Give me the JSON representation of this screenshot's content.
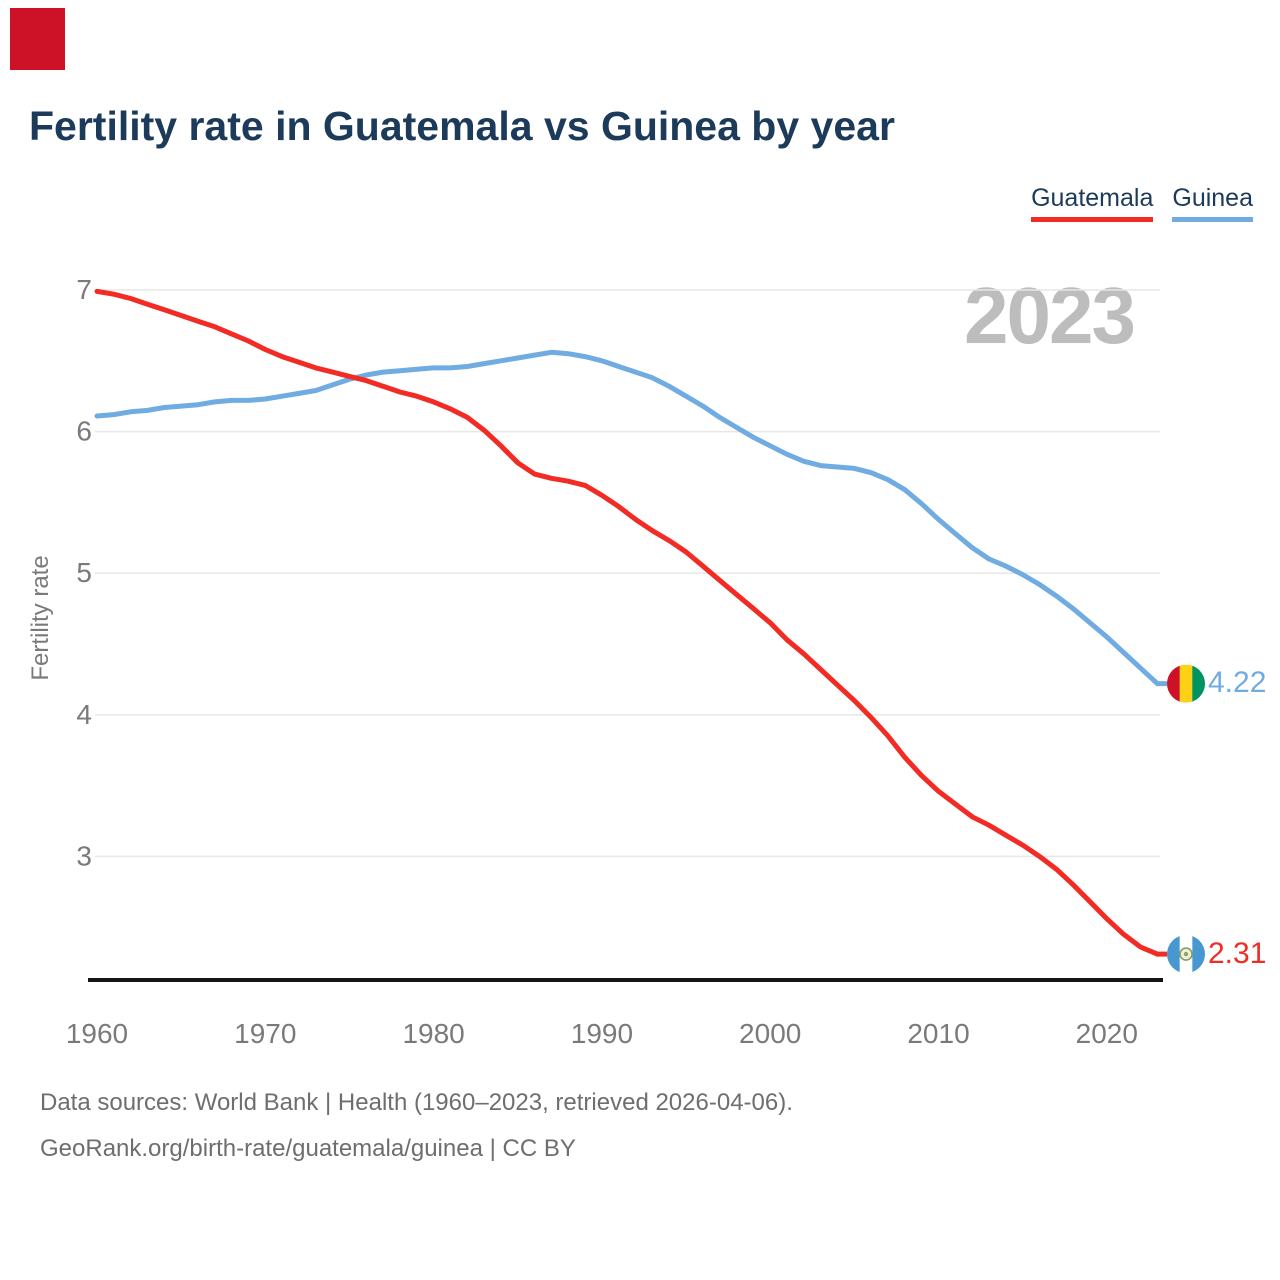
{
  "page": {
    "title": "Fertility rate in Guatemala vs Guinea by year",
    "watermark_year": "2023"
  },
  "brand": {
    "logo_color": "#cd1126"
  },
  "legend": {
    "items": [
      {
        "label": "Guatemala",
        "color": "#f22b24"
      },
      {
        "label": "Guinea",
        "color": "#70ace2"
      }
    ]
  },
  "footer": {
    "sources_line": "Data sources: World Bank | Health (1960–2023, retrieved 2026-04-06).",
    "attribution_line": "GeoRank.org/birth-rate/guatemala/guinea | CC BY"
  },
  "chart_data": {
    "type": "line",
    "title": "Fertility rate in Guatemala vs Guinea by year",
    "xlabel": "",
    "ylabel": "Fertility rate",
    "xlim": [
      1960,
      2023
    ],
    "ylim": [
      2.1,
      7.05
    ],
    "x_ticks": [
      1960,
      1970,
      1980,
      1990,
      2000,
      2010,
      2020
    ],
    "y_ticks": [
      7,
      6,
      5,
      4,
      3
    ],
    "grid": "horizontal",
    "legend_position": "top-right",
    "watermark": "2023",
    "years": [
      1960,
      1961,
      1962,
      1963,
      1964,
      1965,
      1966,
      1967,
      1968,
      1969,
      1970,
      1971,
      1972,
      1973,
      1974,
      1975,
      1976,
      1977,
      1978,
      1979,
      1980,
      1981,
      1982,
      1983,
      1984,
      1985,
      1986,
      1987,
      1988,
      1989,
      1990,
      1991,
      1992,
      1993,
      1994,
      1995,
      1996,
      1997,
      1998,
      1999,
      2000,
      2001,
      2002,
      2003,
      2004,
      2005,
      2006,
      2007,
      2008,
      2009,
      2010,
      2011,
      2012,
      2013,
      2014,
      2015,
      2016,
      2017,
      2018,
      2019,
      2020,
      2021,
      2022,
      2023
    ],
    "series": [
      {
        "name": "Guatemala",
        "color": "#f22b24",
        "end_value_label": "2.31",
        "flag": "guatemala",
        "flag_colors": [
          "#4997d0",
          "#ffffff",
          "#4997d0"
        ],
        "values": [
          6.99,
          6.97,
          6.94,
          6.9,
          6.86,
          6.82,
          6.78,
          6.74,
          6.69,
          6.64,
          6.58,
          6.53,
          6.49,
          6.45,
          6.42,
          6.39,
          6.36,
          6.32,
          6.28,
          6.25,
          6.21,
          6.16,
          6.1,
          6.01,
          5.9,
          5.78,
          5.7,
          5.67,
          5.65,
          5.62,
          5.55,
          5.47,
          5.38,
          5.3,
          5.23,
          5.15,
          5.05,
          4.95,
          4.85,
          4.75,
          4.65,
          4.53,
          4.43,
          4.32,
          4.21,
          4.1,
          3.98,
          3.85,
          3.7,
          3.57,
          3.46,
          3.37,
          3.28,
          3.22,
          3.15,
          3.08,
          3.0,
          2.91,
          2.8,
          2.68,
          2.56,
          2.45,
          2.36,
          2.31
        ]
      },
      {
        "name": "Guinea",
        "color": "#70ace2",
        "end_value_label": "4.22",
        "flag": "guinea",
        "flag_colors": [
          "#ce1126",
          "#fcd116",
          "#009460"
        ],
        "values": [
          6.11,
          6.12,
          6.14,
          6.15,
          6.17,
          6.18,
          6.19,
          6.21,
          6.22,
          6.22,
          6.23,
          6.25,
          6.27,
          6.29,
          6.33,
          6.37,
          6.4,
          6.42,
          6.43,
          6.44,
          6.45,
          6.45,
          6.46,
          6.48,
          6.5,
          6.52,
          6.54,
          6.56,
          6.55,
          6.53,
          6.5,
          6.46,
          6.42,
          6.38,
          6.32,
          6.25,
          6.18,
          6.1,
          6.03,
          5.96,
          5.9,
          5.84,
          5.79,
          5.76,
          5.75,
          5.74,
          5.71,
          5.66,
          5.59,
          5.49,
          5.38,
          5.28,
          5.18,
          5.1,
          5.05,
          4.99,
          4.92,
          4.84,
          4.75,
          4.65,
          4.55,
          4.44,
          4.33,
          4.22
        ]
      }
    ]
  }
}
